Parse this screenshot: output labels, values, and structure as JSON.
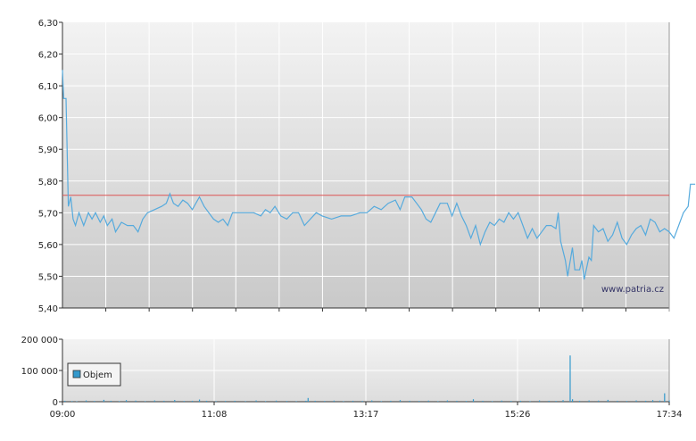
{
  "chart_data": [
    {
      "type": "line",
      "title": "",
      "xlabel": "",
      "ylabel": "",
      "ylim": [
        5.4,
        6.3
      ],
      "y_ticks": [
        "6,30",
        "6,20",
        "6,10",
        "6,00",
        "5,90",
        "5,80",
        "5,70",
        "5,60",
        "5,50",
        "5,40"
      ],
      "grid": true,
      "watermark": "www.patria.cz",
      "reference_line": {
        "value": 5.755,
        "color": "#dd5555"
      },
      "series": [
        {
          "color": "#55aadd",
          "points": [
            [
              0,
              6.15
            ],
            [
              1,
              6.06
            ],
            [
              3,
              6.06
            ],
            [
              5,
              5.72
            ],
            [
              7,
              5.75
            ],
            [
              9,
              5.68
            ],
            [
              11,
              5.66
            ],
            [
              14,
              5.7
            ],
            [
              18,
              5.66
            ],
            [
              22,
              5.7
            ],
            [
              25,
              5.68
            ],
            [
              28,
              5.7
            ],
            [
              32,
              5.67
            ],
            [
              35,
              5.69
            ],
            [
              38,
              5.66
            ],
            [
              42,
              5.68
            ],
            [
              45,
              5.64
            ],
            [
              50,
              5.67
            ],
            [
              55,
              5.66
            ],
            [
              60,
              5.66
            ],
            [
              64,
              5.64
            ],
            [
              68,
              5.68
            ],
            [
              72,
              5.7
            ],
            [
              78,
              5.71
            ],
            [
              84,
              5.72
            ],
            [
              88,
              5.73
            ],
            [
              91,
              5.76
            ],
            [
              94,
              5.73
            ],
            [
              98,
              5.72
            ],
            [
              102,
              5.74
            ],
            [
              106,
              5.73
            ],
            [
              110,
              5.71
            ],
            [
              116,
              5.75
            ],
            [
              120,
              5.72
            ],
            [
              124,
              5.7
            ],
            [
              128,
              5.68
            ],
            [
              132,
              5.67
            ],
            [
              136,
              5.68
            ],
            [
              140,
              5.66
            ],
            [
              144,
              5.7
            ],
            [
              150,
              5.7
            ],
            [
              156,
              5.7
            ],
            [
              162,
              5.7
            ],
            [
              168,
              5.69
            ],
            [
              172,
              5.71
            ],
            [
              176,
              5.7
            ],
            [
              180,
              5.72
            ],
            [
              185,
              5.69
            ],
            [
              190,
              5.68
            ],
            [
              195,
              5.7
            ],
            [
              200,
              5.7
            ],
            [
              205,
              5.66
            ],
            [
              210,
              5.68
            ],
            [
              215,
              5.7
            ],
            [
              220,
              5.69
            ],
            [
              228,
              5.68
            ],
            [
              236,
              5.69
            ],
            [
              244,
              5.69
            ],
            [
              252,
              5.7
            ],
            [
              258,
              5.7
            ],
            [
              264,
              5.72
            ],
            [
              270,
              5.71
            ],
            [
              276,
              5.73
            ],
            [
              282,
              5.74
            ],
            [
              286,
              5.71
            ],
            [
              290,
              5.75
            ],
            [
              296,
              5.75
            ],
            [
              300,
              5.73
            ],
            [
              304,
              5.71
            ],
            [
              308,
              5.68
            ],
            [
              312,
              5.67
            ],
            [
              316,
              5.7
            ],
            [
              320,
              5.73
            ],
            [
              326,
              5.73
            ],
            [
              330,
              5.69
            ],
            [
              334,
              5.73
            ],
            [
              338,
              5.69
            ],
            [
              342,
              5.66
            ],
            [
              346,
              5.62
            ],
            [
              350,
              5.66
            ],
            [
              354,
              5.6
            ],
            [
              358,
              5.64
            ],
            [
              362,
              5.67
            ],
            [
              366,
              5.66
            ],
            [
              370,
              5.68
            ],
            [
              374,
              5.67
            ],
            [
              378,
              5.7
            ],
            [
              382,
              5.68
            ],
            [
              386,
              5.7
            ],
            [
              390,
              5.66
            ],
            [
              394,
              5.62
            ],
            [
              398,
              5.65
            ],
            [
              402,
              5.62
            ],
            [
              406,
              5.64
            ],
            [
              410,
              5.66
            ],
            [
              414,
              5.66
            ],
            [
              418,
              5.65
            ],
            [
              420,
              5.7
            ],
            [
              422,
              5.61
            ],
            [
              426,
              5.55
            ],
            [
              428,
              5.5
            ],
            [
              432,
              5.59
            ],
            [
              434,
              5.52
            ],
            [
              438,
              5.52
            ],
            [
              440,
              5.55
            ],
            [
              442,
              5.49
            ],
            [
              446,
              5.56
            ],
            [
              448,
              5.55
            ],
            [
              450,
              5.66
            ],
            [
              454,
              5.64
            ],
            [
              458,
              5.65
            ],
            [
              462,
              5.61
            ],
            [
              466,
              5.63
            ],
            [
              470,
              5.67
            ],
            [
              474,
              5.62
            ],
            [
              478,
              5.6
            ],
            [
              482,
              5.63
            ],
            [
              486,
              5.65
            ],
            [
              490,
              5.66
            ],
            [
              494,
              5.63
            ],
            [
              498,
              5.68
            ],
            [
              502,
              5.67
            ],
            [
              506,
              5.64
            ],
            [
              510,
              5.65
            ],
            [
              514,
              5.64
            ],
            [
              518,
              5.62
            ],
            [
              522,
              5.66
            ],
            [
              526,
              5.7
            ],
            [
              530,
              5.72
            ],
            [
              532,
              5.79
            ],
            [
              536,
              5.79
            ]
          ]
        }
      ]
    },
    {
      "type": "bar",
      "title": "",
      "xlabel": "",
      "ylabel": "",
      "ylim": [
        0,
        200000
      ],
      "y_ticks": [
        "200 000",
        "100 000",
        "0"
      ],
      "x_ticks": [
        "09:00",
        "11:08",
        "13:17",
        "15:26",
        "17:34"
      ],
      "x_range_minutes": [
        0,
        514
      ],
      "grid": true,
      "legend": {
        "position": "left",
        "labels": [
          "Objem"
        ]
      },
      "series": [
        {
          "name": "Objem",
          "color": "#3399cc",
          "points": [
            [
              2,
              3000
            ],
            [
              8,
              2000
            ],
            [
              12,
              1500
            ],
            [
              20,
              4000
            ],
            [
              27,
              2500
            ],
            [
              35,
              6000
            ],
            [
              41,
              3000
            ],
            [
              48,
              2000
            ],
            [
              54,
              5000
            ],
            [
              62,
              3500
            ],
            [
              70,
              2000
            ],
            [
              78,
              4000
            ],
            [
              86,
              3000
            ],
            [
              95,
              5500
            ],
            [
              103,
              2500
            ],
            [
              110,
              3000
            ],
            [
              116,
              7000
            ],
            [
              122,
              3000
            ],
            [
              130,
              2000
            ],
            [
              138,
              2500
            ],
            [
              146,
              3000
            ],
            [
              155,
              2000
            ],
            [
              164,
              4000
            ],
            [
              172,
              2000
            ],
            [
              181,
              3500
            ],
            [
              190,
              2500
            ],
            [
              198,
              2000
            ],
            [
              206,
              3000
            ],
            [
              208,
              12000
            ],
            [
              214,
              3000
            ],
            [
              222,
              2500
            ],
            [
              230,
              3500
            ],
            [
              238,
              2000
            ],
            [
              246,
              3000
            ],
            [
              254,
              2500
            ],
            [
              262,
              4000
            ],
            [
              270,
              2000
            ],
            [
              278,
              3000
            ],
            [
              286,
              5000
            ],
            [
              294,
              3000
            ],
            [
              302,
              2500
            ],
            [
              310,
              3500
            ],
            [
              318,
              2000
            ],
            [
              326,
              4000
            ],
            [
              334,
              3000
            ],
            [
              342,
              2500
            ],
            [
              348,
              8000
            ],
            [
              356,
              3000
            ],
            [
              364,
              2000
            ],
            [
              372,
              3500
            ],
            [
              380,
              2500
            ],
            [
              388,
              3000
            ],
            [
              396,
              2000
            ],
            [
              404,
              4000
            ],
            [
              412,
              3000
            ],
            [
              418,
              2500
            ],
            [
              424,
              5000
            ],
            [
              430,
              148000
            ],
            [
              432,
              8000
            ],
            [
              438,
              3000
            ],
            [
              446,
              4000
            ],
            [
              454,
              3500
            ],
            [
              462,
              6000
            ],
            [
              470,
              3000
            ],
            [
              478,
              2500
            ],
            [
              486,
              4000
            ],
            [
              494,
              3000
            ],
            [
              500,
              5000
            ],
            [
              506,
              3500
            ],
            [
              510,
              27000
            ],
            [
              514,
              4000
            ]
          ]
        }
      ]
    }
  ]
}
